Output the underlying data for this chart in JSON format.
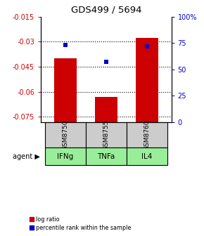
{
  "title": "GDS499 / 5694",
  "categories": [
    0,
    1,
    2
  ],
  "sample_labels": [
    "GSM8750",
    "GSM8755",
    "GSM8760"
  ],
  "agent_labels": [
    "IFNg",
    "TNFa",
    "IL4"
  ],
  "log_ratios": [
    -0.04,
    -0.063,
    -0.028
  ],
  "percentile_ranks": [
    73.0,
    57.0,
    72.0
  ],
  "ylim_left": [
    -0.078,
    -0.015
  ],
  "ylim_right": [
    0,
    100
  ],
  "yticks_left": [
    -0.075,
    -0.06,
    -0.045,
    -0.03,
    -0.015
  ],
  "yticks_right": [
    0,
    25,
    50,
    75,
    100
  ],
  "ytick_labels_left": [
    "-0.075",
    "-0.06",
    "-0.045",
    "-0.03",
    "-0.015"
  ],
  "ytick_labels_right": [
    "0",
    "25",
    "50",
    "75",
    "100%"
  ],
  "bar_color": "#cc0000",
  "dot_color": "#0000cc",
  "sample_bg_color": "#cccccc",
  "agent_bg_color": "#99ee99",
  "agent_label": "agent",
  "legend_log_ratio": "log ratio",
  "legend_percentile": "percentile rank within the sample",
  "bar_width": 0.55,
  "figsize": [
    2.9,
    3.36
  ],
  "dpi": 100
}
